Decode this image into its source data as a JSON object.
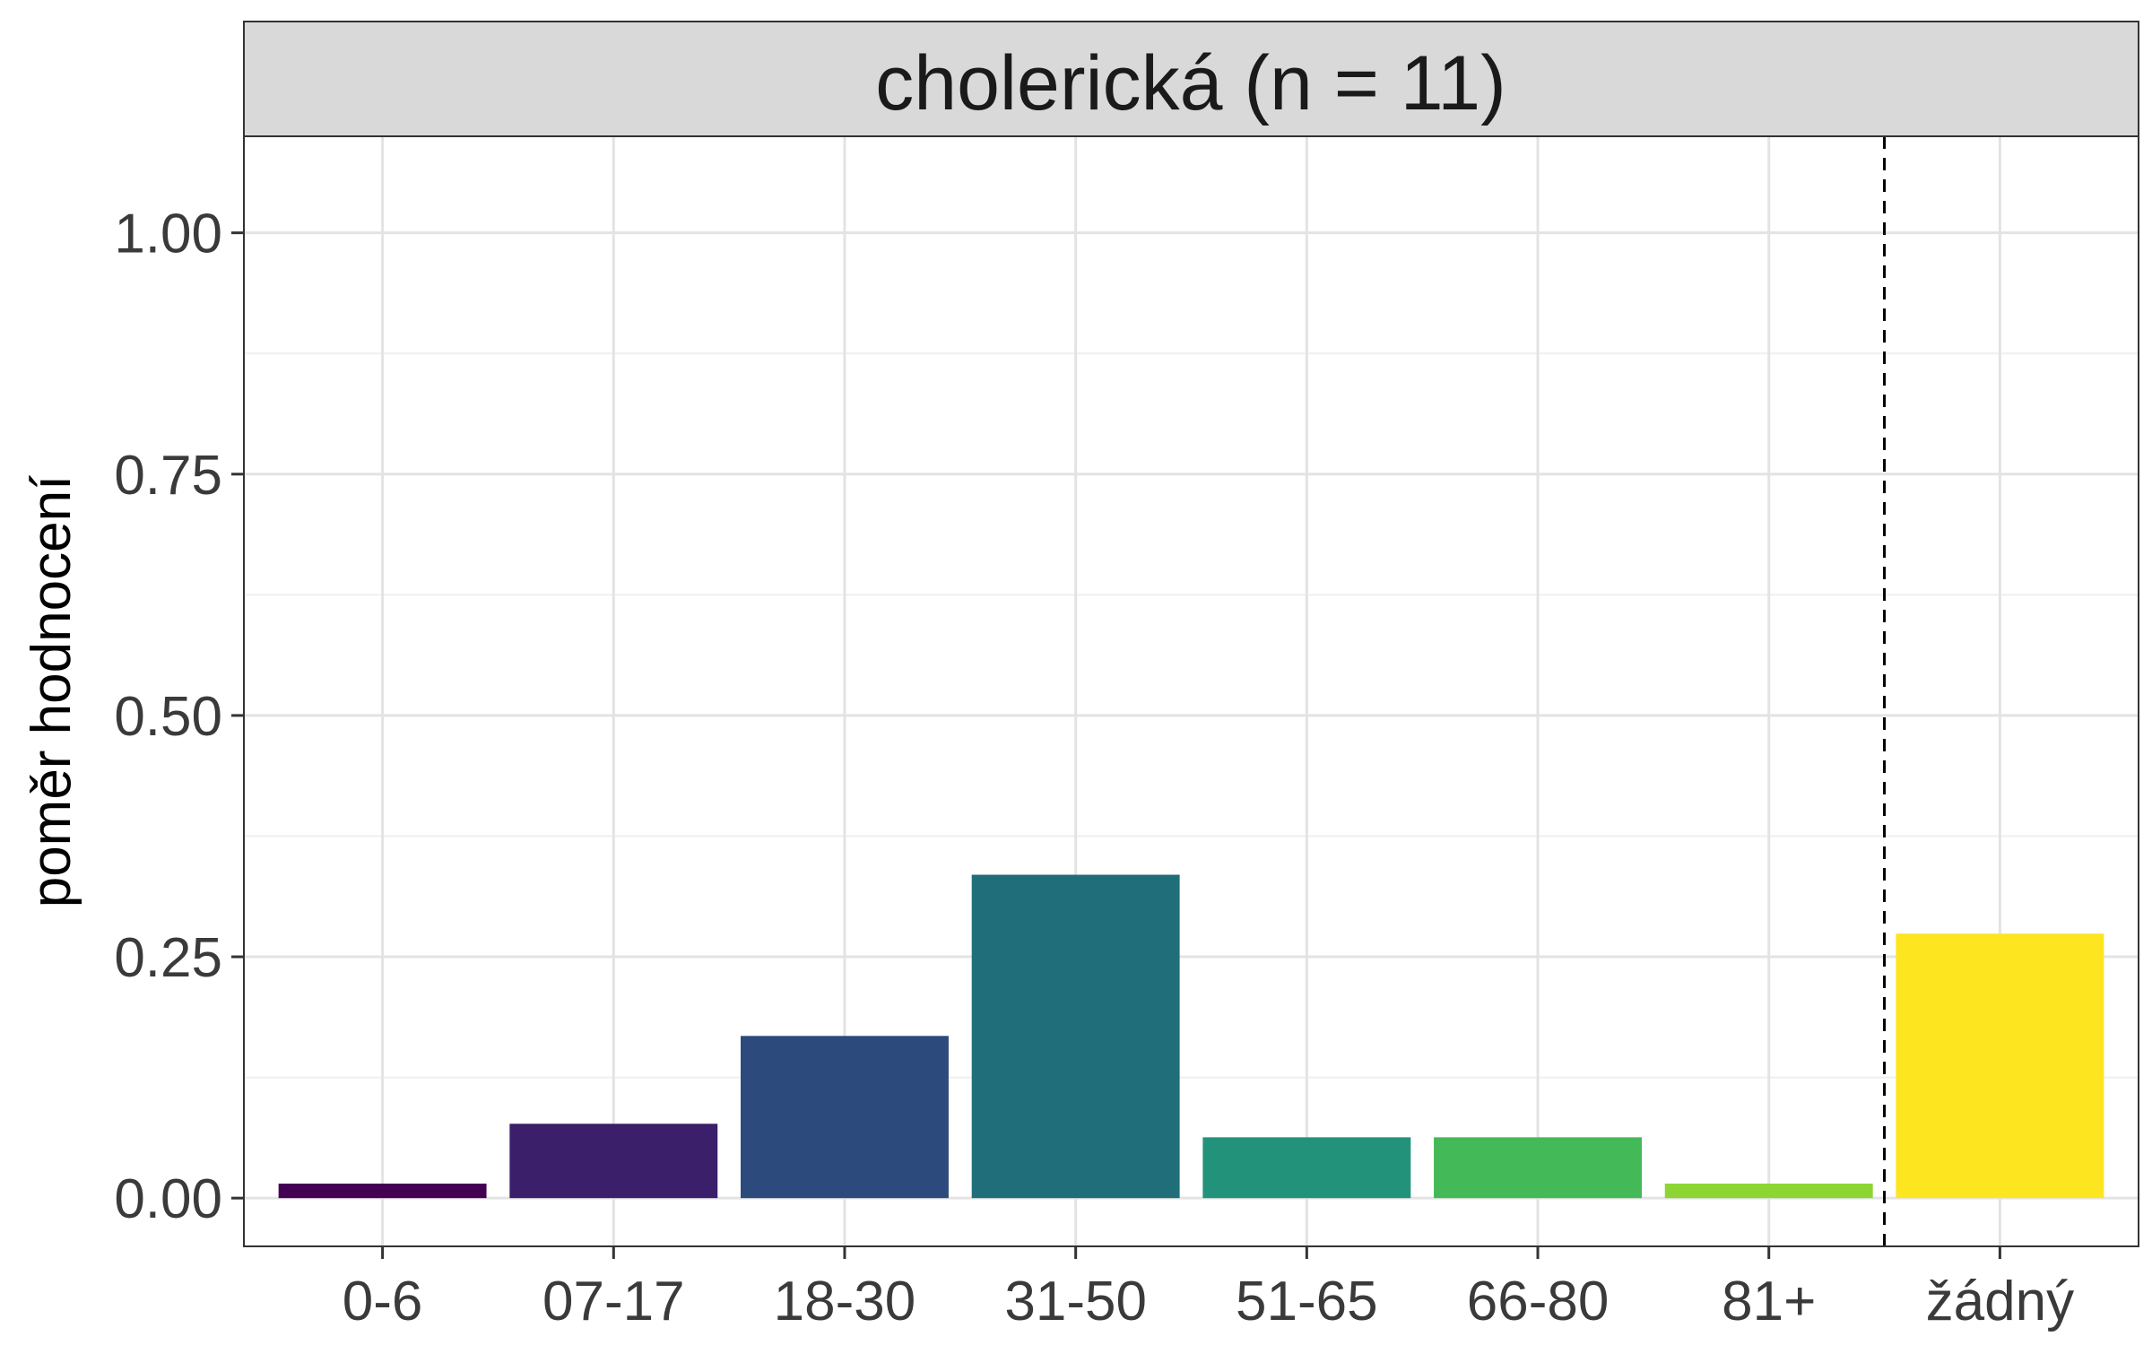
{
  "chart_data": {
    "type": "bar",
    "title": "cholerická (n = 11)",
    "xlabel": "",
    "ylabel": "poměr hodnocení",
    "categories": [
      "0-6",
      "07-17",
      "18-30",
      "31-50",
      "51-65",
      "66-80",
      "81+",
      "žádný"
    ],
    "values": [
      0.015,
      0.077,
      0.168,
      0.335,
      0.063,
      0.063,
      0.015,
      0.274
    ],
    "colors": [
      "#440154",
      "#3b1f6b",
      "#2c4a7c",
      "#206e7a",
      "#22937a",
      "#44b957",
      "#8cd532",
      "#fde51f"
    ],
    "ylim": [
      -0.05,
      1.1
    ],
    "yticks": [
      0.0,
      0.25,
      0.5,
      0.75,
      1.0
    ],
    "ytick_labels": [
      "0.00",
      "0.25",
      "0.50",
      "0.75",
      "1.00"
    ],
    "grid": true,
    "reference_line": {
      "after_category": "81+",
      "style": "dashed"
    }
  }
}
